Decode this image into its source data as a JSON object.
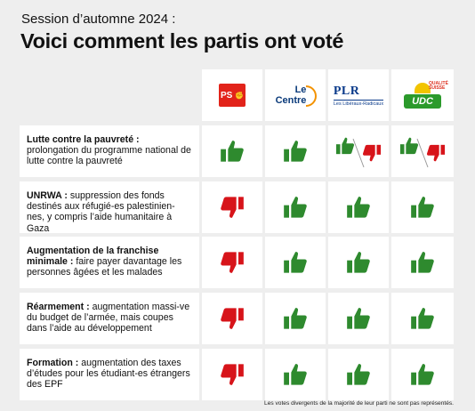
{
  "header": {
    "subtitle": "Session d’automne 2024 :",
    "title": "Voici comment les partis ont voté"
  },
  "parties": [
    {
      "id": "ps",
      "logo_text": "PS"
    },
    {
      "id": "centre",
      "logo_line1": "Le",
      "logo_line2": "Centre"
    },
    {
      "id": "plr",
      "logo_text": "PLR",
      "logo_sub": "Les Libéraux-Radicaux"
    },
    {
      "id": "udc",
      "logo_text": "UDC",
      "logo_tag": "QUALITÉ SUISSE"
    }
  ],
  "colors": {
    "yes": "#2e8a2e",
    "no": "#d7141a",
    "split": "#999999"
  },
  "rows": [
    {
      "bold": "Lutte contre la pauvreté :",
      "text": " prolongation du programme national de lutte contre la pauvreté",
      "votes": [
        "yes",
        "yes",
        "split",
        "split"
      ]
    },
    {
      "bold": "UNRWA :",
      "text": " suppression des fonds destinés aux réfugié-es palestinien-nes, y compris l’aide humanitaire à Gaza",
      "votes": [
        "no",
        "yes",
        "yes",
        "yes"
      ]
    },
    {
      "bold": "Augmentation de la franchise minimale :",
      "text": " faire payer davantage les personnes âgées et les malades",
      "votes": [
        "no",
        "yes",
        "yes",
        "yes"
      ]
    },
    {
      "bold": "Réarmement :",
      "text": " augmentation massi-ve du budget de l’armée, mais coupes dans l’aide au développement",
      "votes": [
        "no",
        "yes",
        "yes",
        "yes"
      ]
    },
    {
      "bold": "Formation :",
      "text": " augmentation des taxes d’études pour les étudiant-es étrangers des EPF",
      "votes": [
        "no",
        "yes",
        "yes",
        "yes"
      ]
    }
  ],
  "footnote": "Les votes divergents de la majorité de leur parti ne sont pas représentés."
}
